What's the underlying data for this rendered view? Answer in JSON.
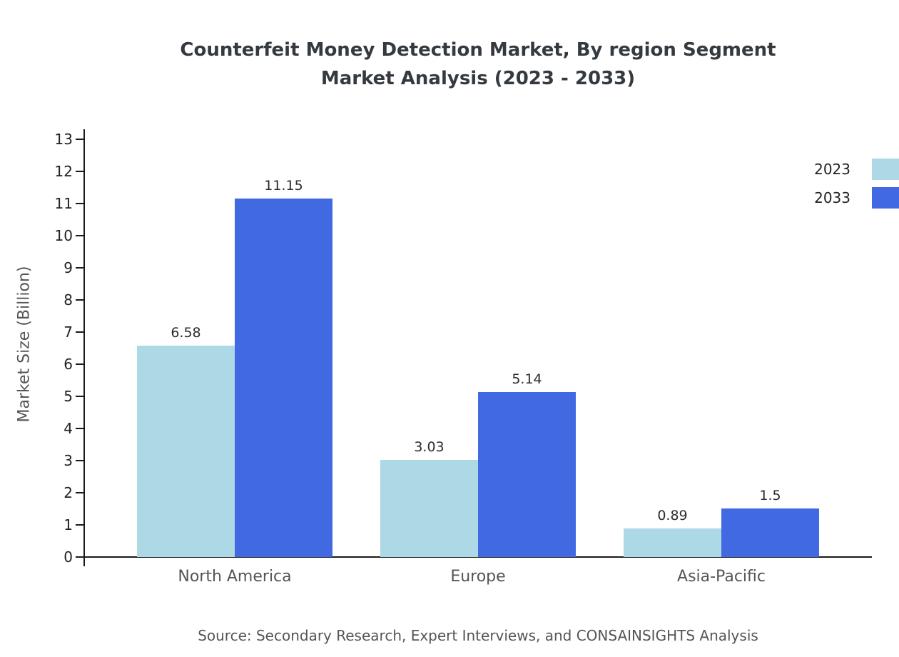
{
  "chart_data": {
    "type": "bar",
    "title_lines": [
      "Counterfeit Money Detection Market, By region Segment",
      "Market Analysis (2023 - 2033)"
    ],
    "categories": [
      "North America",
      "Europe",
      "Asia-Pacific"
    ],
    "series": [
      {
        "name": "2023",
        "color": "#add8e6",
        "values": [
          6.58,
          3.03,
          0.89
        ]
      },
      {
        "name": "2033",
        "color": "#4169e1",
        "values": [
          11.15,
          5.14,
          1.5
        ]
      }
    ],
    "value_labels": [
      [
        "6.58",
        "3.03",
        "0.89"
      ],
      [
        "11.15",
        "5.14",
        "1.5"
      ]
    ],
    "xlabel": "",
    "ylabel": "Market Size (Billion)",
    "ylim": [
      0,
      13
    ],
    "yticks": [
      0,
      1,
      2,
      3,
      4,
      5,
      6,
      7,
      8,
      9,
      10,
      11,
      12,
      13
    ],
    "grid": false,
    "legend_position": "top-right",
    "colors": {
      "axis": "#1a1a1a",
      "tick_label": "#222222",
      "category_label": "#555555",
      "value_label": "#2b2b2b",
      "title": "#343a40",
      "muted_text": "#555555"
    },
    "source": "Source: Secondary Research, Expert Interviews, and CONSAINSIGHTS Analysis"
  }
}
